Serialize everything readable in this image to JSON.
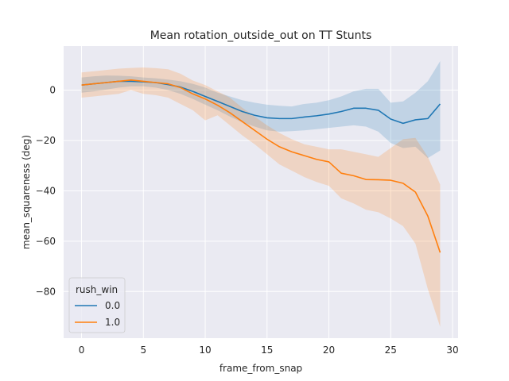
{
  "chart_data": {
    "type": "line",
    "title": "Mean rotation_outside_out on TT Stunts",
    "xlabel": "frame_from_snap",
    "ylabel": "mean_squareness (deg)",
    "xlim": [
      -1.45,
      30.45
    ],
    "ylim": [
      -98.5,
      17.5
    ],
    "xticks": [
      0,
      5,
      10,
      15,
      20,
      25,
      30
    ],
    "yticks": [
      0,
      -20,
      -40,
      -60,
      -80
    ],
    "grid": true,
    "legend": {
      "title": "rush_win",
      "placement": "lower-left"
    },
    "x": [
      0,
      1,
      2,
      3,
      4,
      5,
      6,
      7,
      8,
      9,
      10,
      11,
      12,
      13,
      14,
      15,
      16,
      17,
      18,
      19,
      20,
      21,
      22,
      23,
      24,
      25,
      26,
      27,
      28,
      29
    ],
    "series": [
      {
        "name": "0.0",
        "color": "#1f77b4",
        "values": [
          2,
          2.5,
          3,
          3.5,
          3.5,
          3.3,
          3,
          2.2,
          1.2,
          -0.5,
          -2.5,
          -4.5,
          -6.5,
          -8.5,
          -10,
          -11,
          -11.3,
          -11.3,
          -10.7,
          -10.2,
          -9.5,
          -8.5,
          -7.2,
          -7.2,
          -8,
          -11.5,
          -13.2,
          -11.8,
          -11.3,
          -5.5
        ],
        "upper": [
          5,
          5.5,
          5.8,
          5.7,
          5.5,
          5,
          4.7,
          4.2,
          3.5,
          2.5,
          1,
          -1,
          -2.5,
          -4,
          -5,
          -5.8,
          -6.2,
          -6.5,
          -5.5,
          -5,
          -4,
          -2.5,
          -0.5,
          0.5,
          0.5,
          -5,
          -4.5,
          -1,
          3.5,
          11.5
        ],
        "lower": [
          -1,
          -0.5,
          0.2,
          1,
          1.5,
          1.5,
          1,
          0,
          -1.5,
          -3.5,
          -5.8,
          -8,
          -10.5,
          -12.8,
          -14.5,
          -16,
          -16.5,
          -16.3,
          -16,
          -15.5,
          -15,
          -14.5,
          -14,
          -14.5,
          -16.5,
          -21,
          -23,
          -22.5,
          -27,
          -24
        ]
      },
      {
        "name": "1.0",
        "color": "#ff7f0e",
        "values": [
          2,
          2.5,
          3,
          3.5,
          4,
          3.5,
          3,
          2.5,
          1,
          -1.5,
          -3.5,
          -6,
          -9,
          -12.5,
          -16,
          -19.5,
          -22.5,
          -24.5,
          -26,
          -27.5,
          -28.5,
          -33,
          -34,
          -35.5,
          -35.6,
          -35.8,
          -37,
          -40.5,
          -50,
          -64.5
        ],
        "upper": [
          7,
          7.5,
          8,
          8.5,
          8.8,
          9,
          8.7,
          8.3,
          6.5,
          3.8,
          2,
          -0.5,
          -3,
          -7,
          -10.5,
          -14,
          -17,
          -19.5,
          -21.5,
          -22.5,
          -23.5,
          -23.5,
          -24.5,
          -25.5,
          -26.5,
          -23,
          -19.5,
          -19,
          -26.5,
          -37.5
        ],
        "lower": [
          -3,
          -2.5,
          -2,
          -1.5,
          0,
          -1.5,
          -2,
          -3,
          -5.5,
          -8,
          -12,
          -10,
          -14,
          -18,
          -21.5,
          -25.5,
          -29.5,
          -32,
          -34.5,
          -36.5,
          -38,
          -43,
          -45,
          -47.5,
          -48.5,
          -51,
          -54,
          -61,
          -79,
          -94
        ]
      }
    ]
  }
}
